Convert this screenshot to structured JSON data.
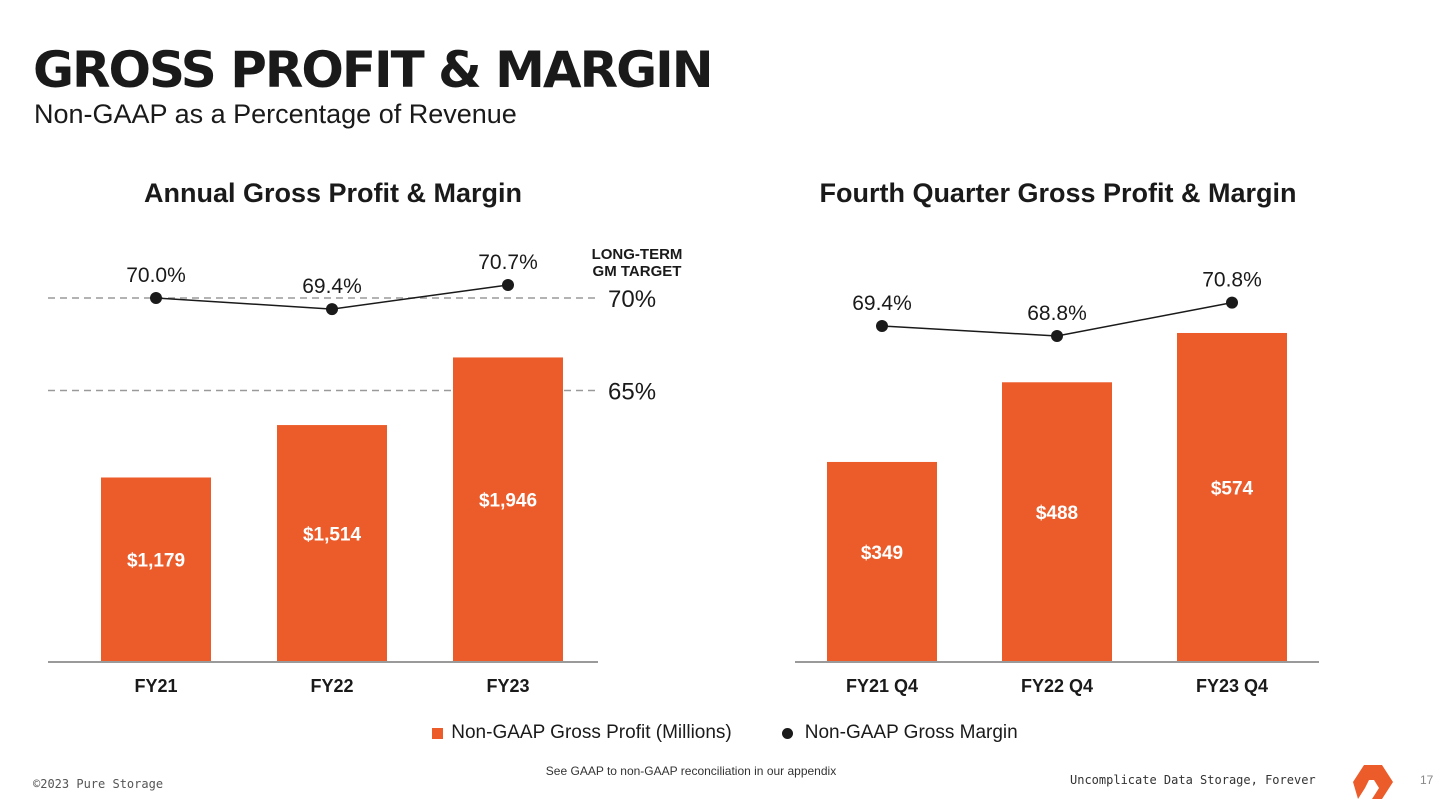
{
  "header": {
    "title": "GROSS PROFIT & MARGIN",
    "subtitle": "Non-GAAP as a Percentage of Revenue"
  },
  "colors": {
    "bar": "#EC5C2B",
    "line": "#1a1a1a",
    "reference": "#9a9a9a",
    "axis": "#9a9a9a"
  },
  "chart_data": [
    {
      "type": "bar",
      "title": "Annual Gross Profit & Margin",
      "categories": [
        "FY21",
        "FY22",
        "FY23"
      ],
      "series": [
        {
          "name": "Non-GAAP Gross Profit (Millions)",
          "type": "bar",
          "values": [
            1179,
            1514,
            1946
          ],
          "labels": [
            "$1,179",
            "$1,514",
            "$1,946"
          ]
        },
        {
          "name": "Non-GAAP Gross Margin",
          "type": "line",
          "values": [
            70.0,
            69.4,
            70.7
          ],
          "labels": [
            "70.0%",
            "69.4%",
            "70.7%"
          ]
        }
      ],
      "reference_lines": [
        {
          "value": 70,
          "label": "70%"
        },
        {
          "value": 65,
          "label": "65%"
        }
      ],
      "annotation": [
        "LONG-TERM",
        "GM TARGET"
      ]
    },
    {
      "type": "bar",
      "title": "Fourth Quarter Gross Profit & Margin",
      "categories": [
        "FY21 Q4",
        "FY22 Q4",
        "FY23 Q4"
      ],
      "series": [
        {
          "name": "Non-GAAP Gross Profit (Millions)",
          "type": "bar",
          "values": [
            349,
            488,
            574
          ],
          "labels": [
            "$349",
            "$488",
            "$574"
          ]
        },
        {
          "name": "Non-GAAP Gross Margin",
          "type": "line",
          "values": [
            69.4,
            68.8,
            70.8
          ],
          "labels": [
            "69.4%",
            "68.8%",
            "70.8%"
          ]
        }
      ]
    }
  ],
  "legend": {
    "bar_label": "Non-GAAP Gross Profit (Millions)",
    "line_label": "Non-GAAP Gross Margin",
    "placement": "bottom"
  },
  "footer": {
    "note": "See GAAP to non-GAAP reconciliation in our appendix",
    "copyright": "©2023 Pure Storage",
    "tagline": "Uncomplicate Data Storage, Forever",
    "page_number": "17"
  }
}
